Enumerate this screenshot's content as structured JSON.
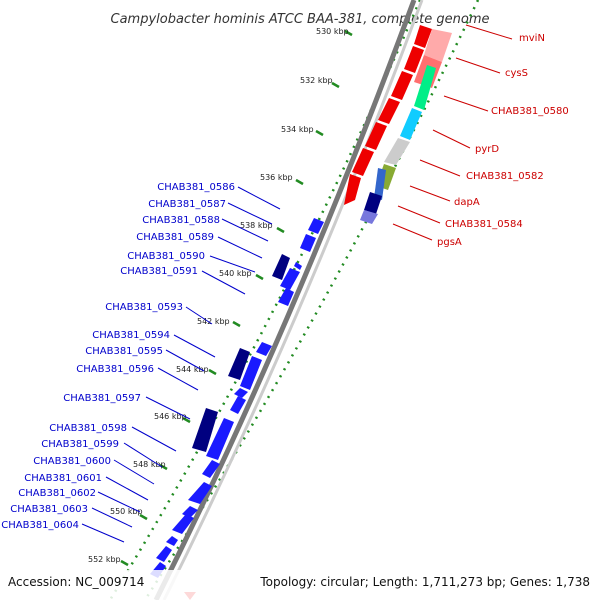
{
  "title": "Campylobacter hominis ATCC BAA-381, complete genome",
  "footer": {
    "accession": "Accession: NC_009714",
    "stats": "Topology: circular; Length: 1,711,273 bp; Genes: 1,738"
  },
  "ticks": [
    "530 kbp",
    "532 kbp",
    "534 kbp",
    "536 kbp",
    "538 kbp",
    "540 kbp",
    "542 kbp",
    "544 kbp",
    "546 kbp",
    "548 kbp",
    "550 kbp",
    "552 kbp"
  ],
  "forward_genes": [
    "mviN",
    "cysS",
    "CHAB381_0580",
    "pyrD",
    "CHAB381_0582",
    "dapA",
    "CHAB381_0584",
    "pgsA"
  ],
  "reverse_genes": [
    "CHAB381_0586",
    "CHAB381_0587",
    "CHAB381_0588",
    "CHAB381_0589",
    "CHAB381_0590",
    "CHAB381_0591",
    "CHAB381_0593",
    "CHAB381_0594",
    "CHAB381_0595",
    "CHAB381_0596",
    "CHAB381_0597",
    "CHAB381_0598",
    "CHAB381_0599",
    "CHAB381_0600",
    "CHAB381_0601",
    "CHAB381_0602",
    "CHAB381_0603",
    "CHAB381_0604"
  ],
  "colors": {
    "forward_label": "#cc0000",
    "reverse_label": "#0000cc",
    "forward_gene": "#ee0000",
    "reverse_gene": "#1a1aff",
    "reverse_gene_dark": "#000080",
    "gc_dots": "#228b22",
    "backbone": "#888888"
  }
}
